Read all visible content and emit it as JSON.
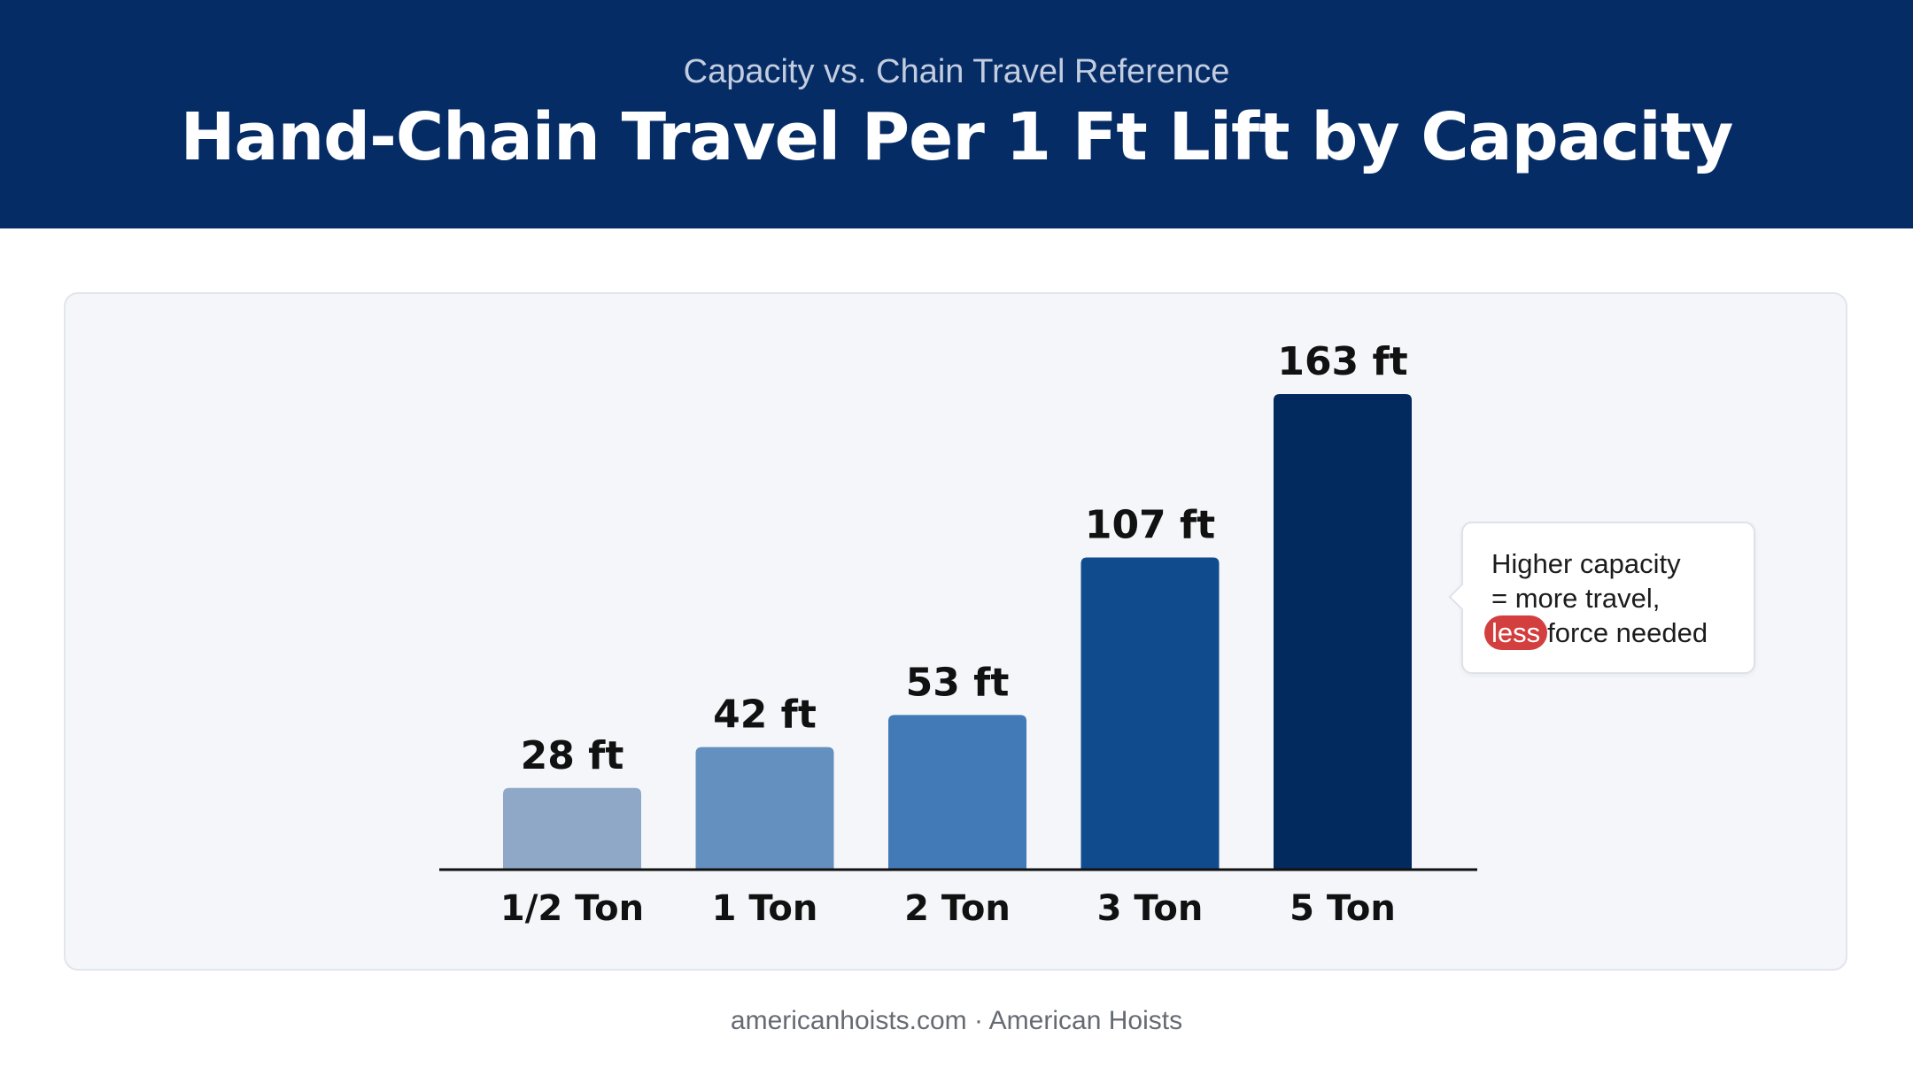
{
  "header": {
    "subtitle": "Capacity vs. Chain Travel Reference",
    "title": "Hand-Chain Travel Per 1 Ft Lift by Capacity"
  },
  "callout": {
    "line1": "Higher capacity",
    "line2": "= more travel,",
    "highlight": "less",
    "line3_rest": "force needed",
    "highlight_color": "#d33f3f"
  },
  "footer": {
    "text": "americanhoists.com · American Hoists"
  },
  "colors": {
    "header_bg": "#062c66",
    "bar_colors": [
      "#8fa8c8",
      "#6490bf",
      "#427ab8",
      "#104b8d",
      "#022a5e"
    ]
  },
  "chart_data": {
    "type": "bar",
    "title": "Hand-Chain Travel Per 1 Ft Lift by Capacity",
    "subtitle": "Capacity vs. Chain Travel Reference",
    "categories": [
      "1/2 Ton",
      "1 Ton",
      "2 Ton",
      "3 Ton",
      "5 Ton"
    ],
    "values": [
      28,
      42,
      53,
      107,
      163
    ],
    "value_labels": [
      "28 ft",
      "42 ft",
      "53 ft",
      "107 ft",
      "163 ft"
    ],
    "unit": "ft",
    "xlabel": "",
    "ylabel": "",
    "ylim": [
      0,
      163
    ],
    "grid": false,
    "legend": "none"
  }
}
